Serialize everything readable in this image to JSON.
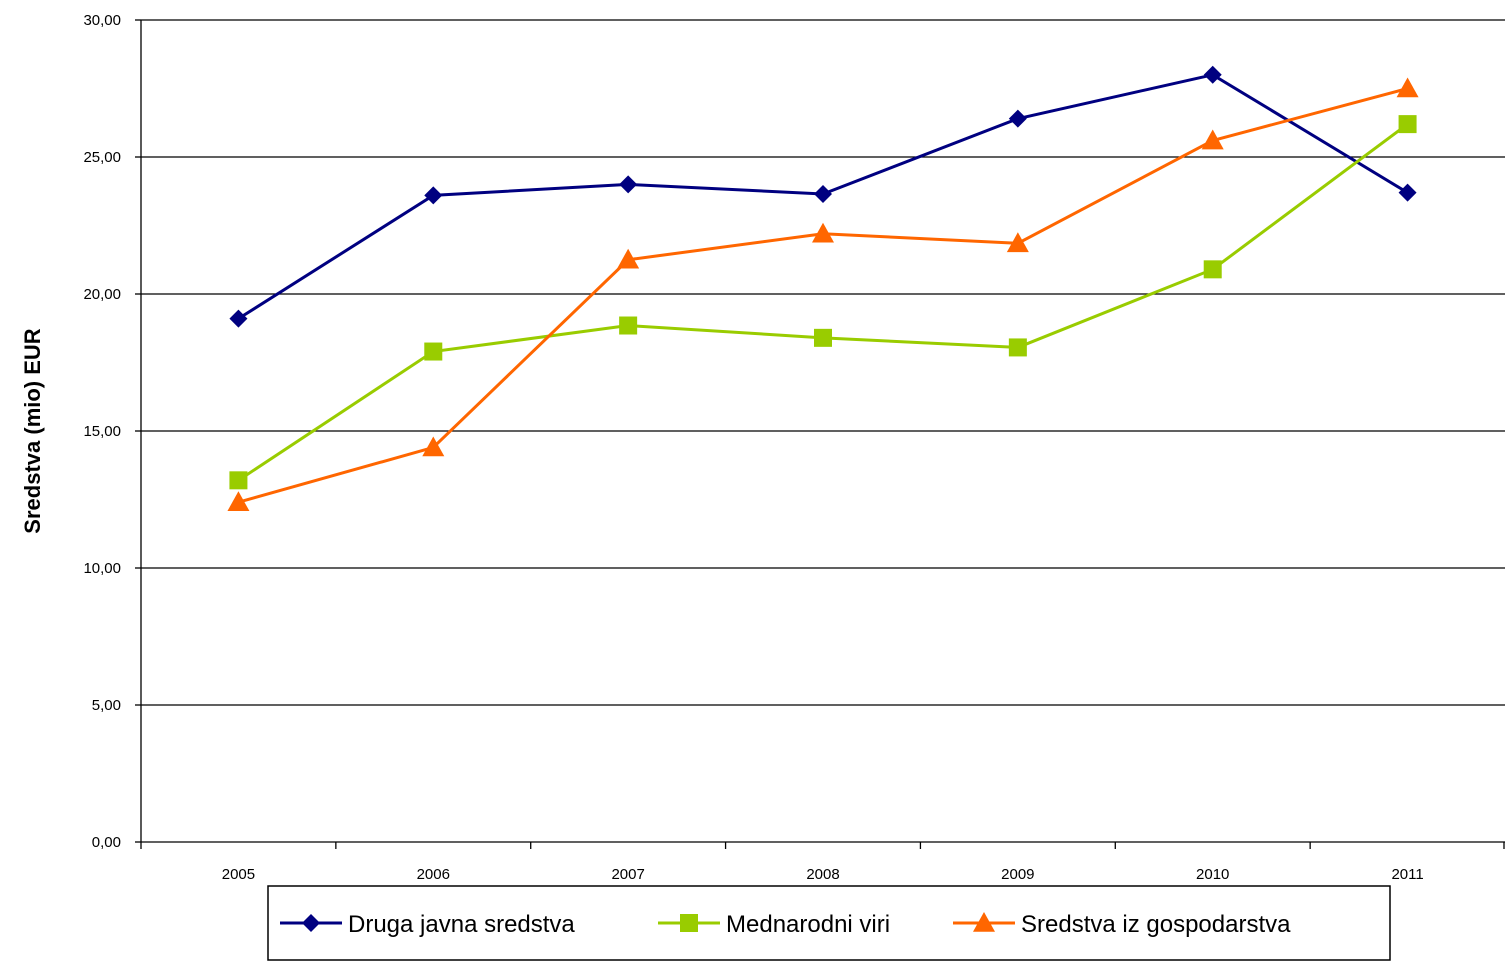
{
  "chart_data": {
    "type": "line",
    "title": "",
    "xlabel": "",
    "ylabel": "Sredstva (mio) EUR",
    "categories": [
      "2005",
      "2006",
      "2007",
      "2008",
      "2009",
      "2010",
      "2011"
    ],
    "ylim": [
      0,
      30
    ],
    "yticks": [
      "0,00",
      "5,00",
      "10,00",
      "15,00",
      "20,00",
      "25,00",
      "30,00"
    ],
    "grid": "horizontal",
    "legend_position": "bottom",
    "series": [
      {
        "name": "Druga javna sredstva",
        "color": "#000080",
        "marker": "diamond",
        "values": [
          19.1,
          23.6,
          24.0,
          23.65,
          26.4,
          28.0,
          23.7
        ]
      },
      {
        "name": "Mednarodni viri",
        "color": "#99CC00",
        "marker": "square",
        "values": [
          13.2,
          17.9,
          18.85,
          18.4,
          18.05,
          20.9,
          26.2
        ]
      },
      {
        "name": "Sredstva iz gospodarstva",
        "color": "#FF6600",
        "marker": "triangle",
        "values": [
          12.4,
          14.4,
          21.25,
          22.2,
          21.85,
          25.6,
          27.5
        ]
      }
    ]
  }
}
